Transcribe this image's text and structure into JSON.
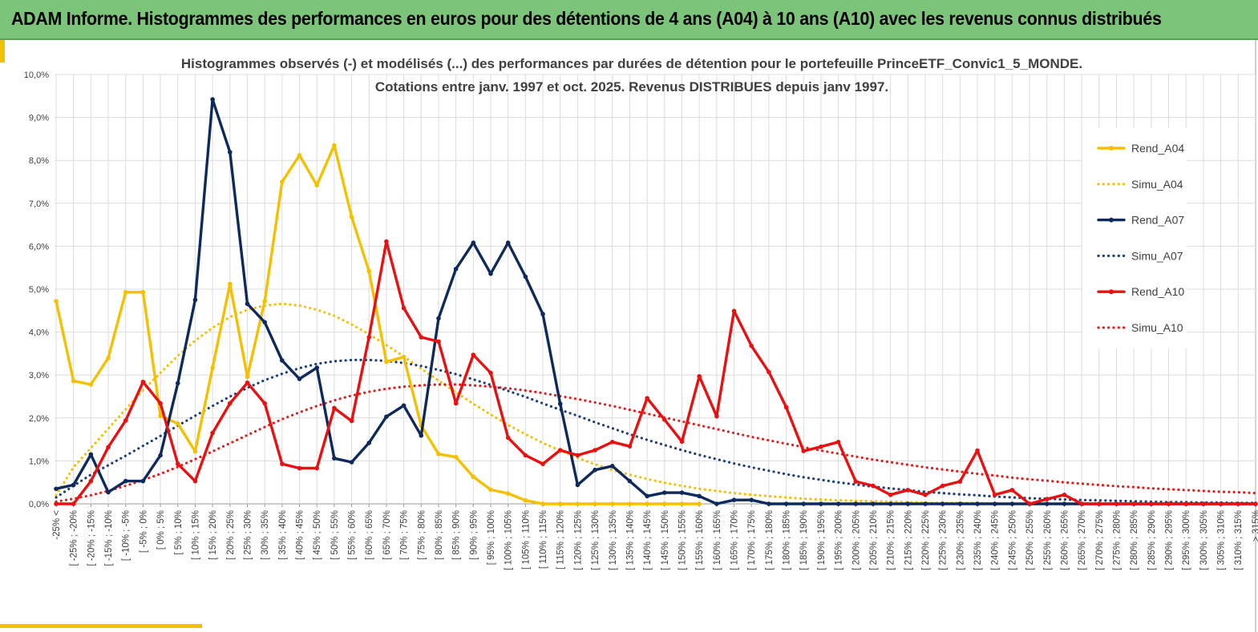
{
  "banner": {
    "title": "ADAM Informe. Histogrammes des performances en euros pour des détentions de 4 ans (A04) à 10 ans (A10) avec les revenus connus distribués"
  },
  "chart_data": {
    "type": "line",
    "title": "Histogrammes observés (-) et modélisés (...) des performances par durées de détention pour le portefeuille PrinceETF_Convic1_5_MONDE.",
    "subtitle": "Cotations entre janv. 1997 et oct. 2025. Revenus DISTRIBUES depuis janv 1997.",
    "grid": true,
    "legend_position": "right",
    "ylim": [
      0,
      10
    ],
    "y_ticks": [
      "0,0%",
      "1,0%",
      "2,0%",
      "3,0%",
      "4,0%",
      "5,0%",
      "6,0%",
      "7,0%",
      "8,0%",
      "9,0%",
      "10,0%"
    ],
    "categories": [
      "-25% <",
      "[ -25% ; -20%",
      "[ -20% ; -15%",
      "[ -15% ; -10%",
      "[ -10% ; -5%",
      "[ -5% ; 0%",
      "[ 0% ; 5%",
      "[ 5% ; 10%",
      "[ 10% ; 15%",
      "[ 15% ; 20%",
      "[ 20% ; 25%",
      "[ 25% ; 30%",
      "[ 30% ; 35%",
      "[ 35% ; 40%",
      "[ 40% ; 45%",
      "[ 45% ; 50%",
      "[ 50% ; 55%",
      "[ 55% ; 60%",
      "[ 60% ; 65%",
      "[ 65% ; 70%",
      "[ 70% ; 75%",
      "[ 75% ; 80%",
      "[ 80% ; 85%",
      "[ 85% ; 90%",
      "[ 90% ; 95%",
      "[ 95% ; 100%",
      "[ 100% ; 105%",
      "[ 105% ; 110%",
      "[ 110% ; 115%",
      "[ 115% ; 120%",
      "[ 120% ; 125%",
      "[ 125% ; 130%",
      "[ 130% ; 135%",
      "[ 135% ; 140%",
      "[ 140% ; 145%",
      "[ 145% ; 150%",
      "[ 150% ; 155%",
      "[ 155% ; 160%",
      "[ 160% ; 165%",
      "[ 165% ; 170%",
      "[ 170% ; 175%",
      "[ 175% ; 180%",
      "[ 180% ; 185%",
      "[ 185% ; 190%",
      "[ 190% ; 195%",
      "[ 195% ; 200%",
      "[ 200% ; 205%",
      "[ 205% ; 210%",
      "[ 210% ; 215%",
      "[ 215% ; 220%",
      "[ 220% ; 225%",
      "[ 225% ; 230%",
      "[ 230% ; 235%",
      "[ 235% ; 240%",
      "[ 240% ; 245%",
      "[ 245% ; 250%",
      "[ 250% ; 255%",
      "[ 255% ; 260%",
      "[ 260% ; 265%",
      "[ 265% ; 270%",
      "[ 270% ; 275%",
      "[ 275% ; 280%",
      "[ 280% ; 285%",
      "[ 285% ; 290%",
      "[ 290% ; 295%",
      "[ 295% ; 300%",
      "[ 300% ; 305%",
      "[ 305% ; 310%",
      "[ 310% ; 315%",
      "> 315%"
    ],
    "series": [
      {
        "name": "Rend_A04",
        "style": "solid",
        "markers": true,
        "color": "#f5c000",
        "values": [
          4.72,
          2.86,
          2.78,
          3.4,
          4.93,
          4.93,
          2.05,
          1.87,
          1.22,
          3.17,
          5.12,
          2.96,
          4.72,
          7.5,
          8.12,
          7.42,
          8.35,
          6.68,
          5.42,
          3.31,
          3.42,
          1.82,
          1.16,
          1.09,
          0.63,
          0.33,
          0.24,
          0.08,
          0.0,
          0.0,
          0.0,
          0.0,
          0.0,
          0.0,
          0.0,
          0.0,
          0.0,
          0.0,
          null,
          null,
          null,
          null,
          null,
          null,
          null,
          null,
          null,
          null,
          null,
          null,
          null,
          null,
          null,
          null,
          null,
          null,
          null,
          null,
          null,
          null,
          null,
          null,
          null,
          null,
          null,
          null,
          null,
          null,
          null,
          null
        ]
      },
      {
        "name": "Simu_A04",
        "style": "dotted",
        "markers": false,
        "color": "#f5c000",
        "values": [
          0.2,
          0.85,
          1.3,
          1.75,
          2.2,
          2.65,
          3.05,
          3.45,
          3.8,
          4.1,
          4.35,
          4.52,
          4.62,
          4.66,
          4.62,
          4.52,
          4.38,
          4.18,
          3.95,
          3.7,
          3.43,
          3.15,
          2.87,
          2.6,
          2.33,
          2.08,
          1.84,
          1.62,
          1.42,
          1.24,
          1.07,
          0.92,
          0.79,
          0.68,
          0.58,
          0.49,
          0.42,
          0.35,
          0.3,
          0.25,
          0.21,
          0.18,
          0.15,
          0.12,
          0.1,
          0.08,
          0.07,
          0.06,
          0.05,
          0.04,
          0.03,
          0.02,
          0.02,
          0.02,
          0.01,
          0.01,
          null,
          null,
          null,
          null,
          null,
          null,
          null,
          null,
          null,
          null,
          null,
          null,
          null,
          null
        ]
      },
      {
        "name": "Rend_A07",
        "style": "solid",
        "markers": true,
        "color": "#0e2a5c",
        "values": [
          0.35,
          0.44,
          1.15,
          0.27,
          0.53,
          0.53,
          1.13,
          2.81,
          4.75,
          9.42,
          8.19,
          4.66,
          4.23,
          3.34,
          2.91,
          3.17,
          1.06,
          0.97,
          1.42,
          2.03,
          2.29,
          1.59,
          4.32,
          5.47,
          6.08,
          5.36,
          6.08,
          5.29,
          4.42,
          2.33,
          0.44,
          0.79,
          0.88,
          0.53,
          0.18,
          0.26,
          0.26,
          0.18,
          0.0,
          0.09,
          0.09,
          0.0,
          0.0,
          0.0,
          0.0,
          0.0,
          0.0,
          0.0,
          0.0,
          0.0,
          0.0,
          0.0,
          0.0,
          0.0,
          0.0,
          0.0,
          0.0,
          0.0,
          0.0,
          0.0,
          0.0,
          0.0,
          0.0,
          0.0,
          0.0,
          0.0,
          0.0,
          0.0,
          0.0,
          0.0
        ]
      },
      {
        "name": "Simu_A07",
        "style": "dotted",
        "markers": false,
        "color": "#1f3f7a",
        "values": [
          0.15,
          0.42,
          0.68,
          0.9,
          1.12,
          1.35,
          1.58,
          1.82,
          2.05,
          2.28,
          2.5,
          2.7,
          2.88,
          3.03,
          3.16,
          3.26,
          3.32,
          3.35,
          3.35,
          3.33,
          3.28,
          3.21,
          3.12,
          3.02,
          2.9,
          2.77,
          2.63,
          2.49,
          2.34,
          2.19,
          2.05,
          1.9,
          1.76,
          1.62,
          1.49,
          1.37,
          1.25,
          1.14,
          1.04,
          0.94,
          0.85,
          0.77,
          0.69,
          0.62,
          0.56,
          0.5,
          0.45,
          0.4,
          0.36,
          0.32,
          0.28,
          0.25,
          0.22,
          0.2,
          0.17,
          0.15,
          0.13,
          0.12,
          0.1,
          0.09,
          0.08,
          0.07,
          0.06,
          0.05,
          0.04,
          0.04,
          0.03,
          0.03,
          0.02,
          0.02
        ]
      },
      {
        "name": "Rend_A10",
        "style": "solid",
        "markers": true,
        "color": "#e81010",
        "values": [
          0.0,
          0.0,
          0.53,
          1.32,
          1.94,
          2.84,
          2.34,
          0.93,
          0.53,
          1.65,
          2.34,
          2.82,
          2.34,
          0.93,
          0.83,
          0.83,
          2.23,
          1.93,
          3.88,
          6.11,
          4.56,
          3.88,
          3.78,
          2.34,
          3.47,
          3.05,
          1.54,
          1.13,
          0.93,
          1.25,
          1.13,
          1.25,
          1.44,
          1.34,
          2.46,
          1.96,
          1.45,
          2.97,
          2.04,
          4.49,
          3.68,
          3.07,
          2.25,
          1.23,
          1.33,
          1.44,
          0.52,
          0.42,
          0.21,
          0.32,
          0.21,
          0.42,
          0.52,
          1.24,
          0.21,
          0.32,
          0.0,
          0.11,
          0.21,
          0.0,
          0.0,
          0.0,
          0.0,
          0.0,
          0.0,
          0.0,
          0.0,
          0.0,
          0.0,
          0.0
        ]
      },
      {
        "name": "Simu_A10",
        "style": "dotted",
        "markers": false,
        "color": "#e02020",
        "values": [
          0.05,
          0.12,
          0.2,
          0.3,
          0.42,
          0.55,
          0.7,
          0.86,
          1.04,
          1.22,
          1.41,
          1.6,
          1.79,
          1.97,
          2.13,
          2.28,
          2.41,
          2.52,
          2.61,
          2.68,
          2.73,
          2.76,
          2.78,
          2.78,
          2.76,
          2.73,
          2.69,
          2.64,
          2.58,
          2.51,
          2.44,
          2.36,
          2.28,
          2.19,
          2.1,
          2.01,
          1.92,
          1.83,
          1.74,
          1.65,
          1.56,
          1.48,
          1.4,
          1.32,
          1.24,
          1.17,
          1.1,
          1.03,
          0.97,
          0.91,
          0.85,
          0.8,
          0.75,
          0.7,
          0.66,
          0.61,
          0.57,
          0.54,
          0.5,
          0.47,
          0.44,
          0.41,
          0.39,
          0.36,
          0.34,
          0.32,
          0.3,
          0.28,
          0.27,
          0.25
        ]
      }
    ]
  }
}
